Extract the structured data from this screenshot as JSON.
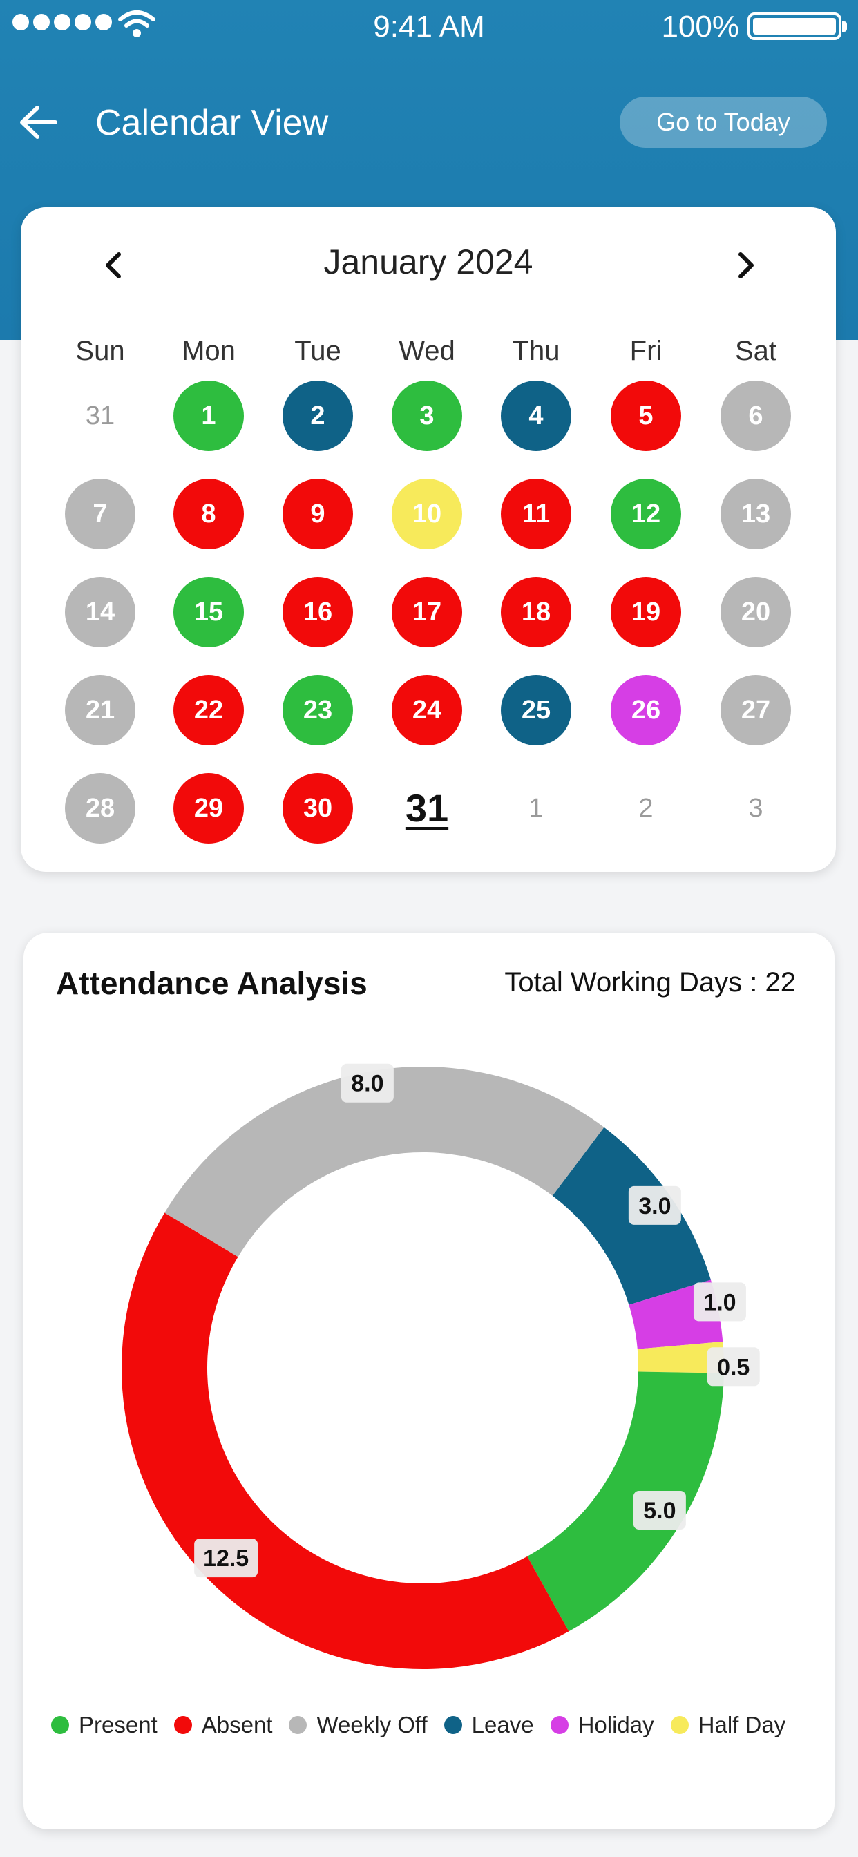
{
  "status_bar": {
    "time": "9:41 AM",
    "battery": "100%"
  },
  "header": {
    "title": "Calendar View",
    "today_button": "Go to Today"
  },
  "calendar": {
    "month_label": "January 2024",
    "weekdays": [
      "Sun",
      "Mon",
      "Tue",
      "Wed",
      "Thu",
      "Fri",
      "Sat"
    ],
    "colors": {
      "present": "#2ebd3f",
      "absent": "#f20a0a",
      "weekly_off": "#b7b7b7",
      "leave": "#0f6287",
      "holiday": "#d63ee5",
      "half_day": "#f7ea5b"
    },
    "weeks": [
      [
        {
          "label": "31",
          "status": "muted"
        },
        {
          "label": "1",
          "status": "present"
        },
        {
          "label": "2",
          "status": "leave"
        },
        {
          "label": "3",
          "status": "present"
        },
        {
          "label": "4",
          "status": "leave"
        },
        {
          "label": "5",
          "status": "absent"
        },
        {
          "label": "6",
          "status": "weekly_off"
        }
      ],
      [
        {
          "label": "7",
          "status": "weekly_off"
        },
        {
          "label": "8",
          "status": "absent"
        },
        {
          "label": "9",
          "status": "absent"
        },
        {
          "label": "10",
          "status": "half_day"
        },
        {
          "label": "11",
          "status": "absent"
        },
        {
          "label": "12",
          "status": "present"
        },
        {
          "label": "13",
          "status": "weekly_off"
        }
      ],
      [
        {
          "label": "14",
          "status": "weekly_off"
        },
        {
          "label": "15",
          "status": "present"
        },
        {
          "label": "16",
          "status": "absent"
        },
        {
          "label": "17",
          "status": "absent"
        },
        {
          "label": "18",
          "status": "absent"
        },
        {
          "label": "19",
          "status": "absent"
        },
        {
          "label": "20",
          "status": "weekly_off"
        }
      ],
      [
        {
          "label": "21",
          "status": "weekly_off"
        },
        {
          "label": "22",
          "status": "absent"
        },
        {
          "label": "23",
          "status": "present"
        },
        {
          "label": "24",
          "status": "absent"
        },
        {
          "label": "25",
          "status": "leave"
        },
        {
          "label": "26",
          "status": "holiday"
        },
        {
          "label": "27",
          "status": "weekly_off"
        }
      ],
      [
        {
          "label": "28",
          "status": "weekly_off"
        },
        {
          "label": "29",
          "status": "absent"
        },
        {
          "label": "30",
          "status": "absent"
        },
        {
          "label": "31",
          "status": "today"
        },
        {
          "label": "1",
          "status": "muted"
        },
        {
          "label": "2",
          "status": "muted"
        },
        {
          "label": "3",
          "status": "muted"
        }
      ]
    ]
  },
  "analysis": {
    "title": "Attendance Analysis",
    "total_working_days": "Total Working Days : 22"
  },
  "chart_data": {
    "type": "pie",
    "donut": true,
    "title": "",
    "start_order_clockwise_from_top": [
      "Leave",
      "Holiday",
      "Half Day",
      "Present",
      "Absent",
      "Weekly Off"
    ],
    "slices": [
      {
        "name": "Leave",
        "value": 3.0,
        "label": "3.0",
        "color": "#0f6287"
      },
      {
        "name": "Holiday",
        "value": 1.0,
        "label": "1.0",
        "color": "#d63ee5"
      },
      {
        "name": "Half Day",
        "value": 0.5,
        "label": "0.5",
        "color": "#f7ea5b"
      },
      {
        "name": "Present",
        "value": 5.0,
        "label": "5.0",
        "color": "#2ebd3f"
      },
      {
        "name": "Absent",
        "value": 12.5,
        "label": "12.5",
        "color": "#f20a0a"
      },
      {
        "name": "Weekly Off",
        "value": 8.0,
        "label": "8.0",
        "color": "#b7b7b7"
      }
    ],
    "legend_placement": "bottom",
    "legend": [
      {
        "name": "Present",
        "color": "#2ebd3f"
      },
      {
        "name": "Absent",
        "color": "#f20a0a"
      },
      {
        "name": "Weekly Off",
        "color": "#b7b7b7"
      },
      {
        "name": "Leave",
        "color": "#0f6287"
      },
      {
        "name": "Holiday",
        "color": "#d63ee5"
      },
      {
        "name": "Half Day",
        "color": "#f7ea5b"
      }
    ]
  }
}
